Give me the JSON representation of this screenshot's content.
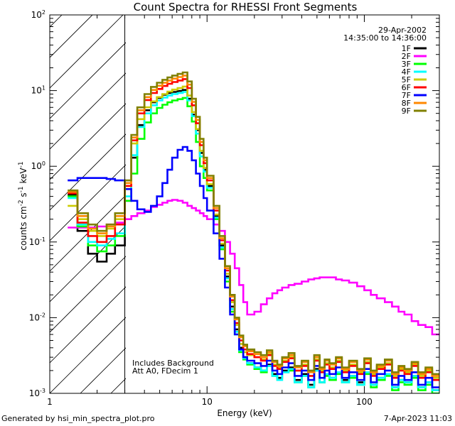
{
  "chart_data": {
    "type": "line",
    "title": "Count Spectra for RHESSI Front Segments",
    "xlabel": "Energy (keV)",
    "ylabel_base": "counts cm",
    "ylabel_exp1": "-2",
    "ylabel_mid": " s",
    "ylabel_exp2": "-1",
    "ylabel_mid2": " keV",
    "ylabel_exp3": "-1",
    "xscale": "log",
    "yscale": "log",
    "xlim": [
      1,
      300
    ],
    "ylim": [
      0.001,
      100
    ],
    "x_ticks": [
      {
        "value": 1,
        "label": "1"
      },
      {
        "value": 10,
        "label": "10"
      },
      {
        "value": 100,
        "label": "100"
      }
    ],
    "y_ticks": [
      {
        "value": 100,
        "base": "10",
        "exp": "2"
      },
      {
        "value": 10,
        "base": "10",
        "exp": "1"
      },
      {
        "value": 1,
        "base": "10",
        "exp": "0"
      },
      {
        "value": 0.1,
        "base": "10",
        "exp": "-1"
      },
      {
        "value": 0.01,
        "base": "10",
        "exp": "-2"
      },
      {
        "value": 0.001,
        "base": "10",
        "exp": "-3"
      }
    ],
    "date": "29-Apr-2002",
    "time_range": "14:35:00 to 14:36:00",
    "annotation_lines": [
      "Includes Background",
      "Att A0, FDecim 1"
    ],
    "hatched_region": [
      1,
      3
    ],
    "energy_bins": [
      1.3,
      1.5,
      1.75,
      2.0,
      2.3,
      2.6,
      3.0,
      3.3,
      3.6,
      4.0,
      4.4,
      4.8,
      5.2,
      5.6,
      6.0,
      6.5,
      7.0,
      7.5,
      8.0,
      8.5,
      9.0,
      9.5,
      10,
      11,
      12,
      13,
      14,
      15,
      16,
      17,
      18,
      20,
      22,
      24,
      26,
      28,
      30,
      33,
      36,
      40,
      44,
      48,
      52,
      56,
      60,
      66,
      72,
      80,
      90,
      100,
      110,
      120,
      135,
      150,
      165,
      180,
      200,
      220,
      245,
      270,
      300
    ],
    "series": [
      {
        "name": "1F",
        "color": "#000000",
        "values": [
          0.42,
          0.14,
          0.07,
          0.055,
          0.07,
          0.09,
          0.35,
          1.3,
          3.5,
          5.5,
          7.0,
          8.0,
          8.8,
          9.3,
          9.6,
          9.9,
          10.2,
          7.8,
          4.8,
          3.0,
          1.5,
          0.9,
          0.55,
          0.22,
          0.09,
          0.035,
          0.014,
          0.007,
          0.004,
          0.003,
          0.0025,
          0.0022,
          0.002,
          0.0024,
          0.0018,
          0.0016,
          0.002,
          0.0022,
          0.0015,
          0.0018,
          0.0013,
          0.0021,
          0.0014,
          0.0018,
          0.0016,
          0.0019,
          0.0015,
          0.0017,
          0.0014,
          0.0019,
          0.0013,
          0.0016,
          0.0018,
          0.0012,
          0.0015,
          0.0014,
          0.0017,
          0.0012,
          0.0014,
          0.0011
        ]
      },
      {
        "name": "2F",
        "color": "#ff00ff",
        "values": [
          0.155,
          0.155,
          0.155,
          0.16,
          0.17,
          0.18,
          0.2,
          0.22,
          0.24,
          0.26,
          0.29,
          0.31,
          0.33,
          0.35,
          0.36,
          0.35,
          0.33,
          0.3,
          0.28,
          0.26,
          0.24,
          0.22,
          0.2,
          0.17,
          0.14,
          0.1,
          0.07,
          0.045,
          0.027,
          0.016,
          0.011,
          0.012,
          0.015,
          0.018,
          0.021,
          0.023,
          0.025,
          0.027,
          0.028,
          0.03,
          0.032,
          0.033,
          0.034,
          0.034,
          0.034,
          0.032,
          0.031,
          0.029,
          0.026,
          0.023,
          0.02,
          0.018,
          0.016,
          0.014,
          0.012,
          0.011,
          0.009,
          0.008,
          0.0075,
          0.006
        ]
      },
      {
        "name": "3F",
        "color": "#00ff00",
        "values": [
          0.4,
          0.16,
          0.09,
          0.075,
          0.09,
          0.12,
          0.35,
          0.8,
          2.3,
          3.8,
          5.0,
          5.9,
          6.5,
          7.0,
          7.4,
          7.7,
          8.0,
          6.2,
          3.9,
          2.1,
          1.0,
          0.7,
          0.48,
          0.2,
          0.08,
          0.03,
          0.012,
          0.006,
          0.0035,
          0.0028,
          0.0024,
          0.0021,
          0.0019,
          0.0023,
          0.0017,
          0.0015,
          0.0019,
          0.002,
          0.0014,
          0.0017,
          0.0012,
          0.002,
          0.0014,
          0.0017,
          0.0015,
          0.0018,
          0.0014,
          0.0016,
          0.0013,
          0.0018,
          0.0012,
          0.0015,
          0.0017,
          0.0011,
          0.0014,
          0.0013,
          0.0016,
          0.0011,
          0.0013,
          0.001
        ]
      },
      {
        "name": "4F",
        "color": "#00ffff",
        "values": [
          0.38,
          0.17,
          0.1,
          0.09,
          0.11,
          0.13,
          0.4,
          1.4,
          3.3,
          5.0,
          6.4,
          7.4,
          8.1,
          8.6,
          9.0,
          9.3,
          9.6,
          7.4,
          4.6,
          2.7,
          1.35,
          0.85,
          0.52,
          0.21,
          0.085,
          0.033,
          0.013,
          0.0065,
          0.0037,
          0.0029,
          0.0025,
          0.0022,
          0.002,
          0.0023,
          0.0017,
          0.0015,
          0.0019,
          0.0021,
          0.0014,
          0.0017,
          0.0012,
          0.002,
          0.0014,
          0.0018,
          0.0016,
          0.0019,
          0.0014,
          0.0017,
          0.0013,
          0.0019,
          0.0013,
          0.0016,
          0.0018,
          0.0012,
          0.0015,
          0.0014,
          0.0017,
          0.0012,
          0.0014,
          0.0011
        ]
      },
      {
        "name": "5F",
        "color": "#cccc00",
        "values": [
          0.3,
          0.2,
          0.14,
          0.12,
          0.15,
          0.2,
          0.55,
          2.0,
          4.2,
          6.0,
          7.2,
          8.2,
          9.0,
          9.7,
          10.3,
          10.8,
          11.3,
          8.6,
          5.2,
          3.1,
          1.6,
          0.95,
          0.58,
          0.23,
          0.095,
          0.038,
          0.016,
          0.008,
          0.0045,
          0.0035,
          0.0032,
          0.003,
          0.0028,
          0.0033,
          0.0024,
          0.0022,
          0.0027,
          0.003,
          0.002,
          0.0024,
          0.0017,
          0.0028,
          0.002,
          0.0025,
          0.0022,
          0.0027,
          0.002,
          0.0024,
          0.0019,
          0.0026,
          0.0018,
          0.0022,
          0.0025,
          0.0017,
          0.0021,
          0.0019,
          0.0024,
          0.0017,
          0.002,
          0.0016
        ]
      },
      {
        "name": "6F",
        "color": "#ff0000",
        "values": [
          0.44,
          0.18,
          0.12,
          0.1,
          0.12,
          0.17,
          0.55,
          2.2,
          5.0,
          7.5,
          9.3,
          10.5,
          11.5,
          12.3,
          13.0,
          13.6,
          14.2,
          10.8,
          6.4,
          3.7,
          1.9,
          1.1,
          0.65,
          0.26,
          0.105,
          0.042,
          0.017,
          0.0085,
          0.005,
          0.0038,
          0.0033,
          0.003,
          0.0027,
          0.0032,
          0.0023,
          0.0021,
          0.0026,
          0.0029,
          0.002,
          0.0023,
          0.0017,
          0.0027,
          0.0019,
          0.0024,
          0.0021,
          0.0026,
          0.0019,
          0.0023,
          0.0018,
          0.0025,
          0.0017,
          0.0021,
          0.0024,
          0.0016,
          0.002,
          0.0018,
          0.0023,
          0.0016,
          0.0019,
          0.0015
        ]
      },
      {
        "name": "7F",
        "color": "#0000ff",
        "values": [
          0.65,
          0.7,
          0.7,
          0.7,
          0.68,
          0.65,
          0.5,
          0.35,
          0.27,
          0.25,
          0.3,
          0.4,
          0.6,
          0.9,
          1.3,
          1.65,
          1.8,
          1.6,
          1.2,
          0.8,
          0.55,
          0.38,
          0.26,
          0.13,
          0.06,
          0.025,
          0.011,
          0.006,
          0.0038,
          0.003,
          0.0027,
          0.0025,
          0.0023,
          0.0027,
          0.002,
          0.0018,
          0.0022,
          0.0025,
          0.0017,
          0.002,
          0.0015,
          0.0023,
          0.0016,
          0.002,
          0.0018,
          0.0022,
          0.0016,
          0.0019,
          0.0015,
          0.0021,
          0.0014,
          0.0018,
          0.002,
          0.0013,
          0.0017,
          0.0015,
          0.0019,
          0.0013,
          0.0016,
          0.0012
        ]
      },
      {
        "name": "8F",
        "color": "#ff8800",
        "values": [
          0.46,
          0.22,
          0.15,
          0.13,
          0.16,
          0.22,
          0.6,
          2.4,
          5.5,
          8.2,
          10.2,
          11.6,
          12.7,
          13.6,
          14.4,
          15.1,
          15.8,
          12.0,
          7.1,
          4.1,
          2.1,
          1.2,
          0.7,
          0.28,
          0.112,
          0.045,
          0.019,
          0.0095,
          0.0055,
          0.0042,
          0.0036,
          0.0033,
          0.003,
          0.0035,
          0.0026,
          0.0023,
          0.0029,
          0.0032,
          0.0022,
          0.0026,
          0.0019,
          0.003,
          0.0021,
          0.0027,
          0.0024,
          0.0029,
          0.0021,
          0.0026,
          0.002,
          0.0028,
          0.0019,
          0.0023,
          0.0027,
          0.0018,
          0.0022,
          0.002,
          0.0025,
          0.0018,
          0.0021,
          0.0017
        ]
      },
      {
        "name": "9F",
        "color": "#808000",
        "values": [
          0.48,
          0.24,
          0.17,
          0.14,
          0.17,
          0.24,
          0.65,
          2.6,
          6.0,
          9.0,
          11.2,
          12.7,
          13.9,
          14.9,
          15.8,
          16.6,
          17.4,
          13.2,
          7.8,
          4.5,
          2.3,
          1.3,
          0.75,
          0.3,
          0.12,
          0.048,
          0.02,
          0.01,
          0.0058,
          0.0044,
          0.0038,
          0.0035,
          0.0032,
          0.0037,
          0.0027,
          0.0024,
          0.003,
          0.0034,
          0.0023,
          0.0027,
          0.002,
          0.0032,
          0.0022,
          0.0028,
          0.0025,
          0.003,
          0.0022,
          0.0027,
          0.0021,
          0.0029,
          0.002,
          0.0024,
          0.0028,
          0.0019,
          0.0023,
          0.0021,
          0.0026,
          0.0019,
          0.0022,
          0.0018
        ]
      }
    ]
  },
  "footer": {
    "left": "Generated by hsi_min_spectra_plot.pro",
    "right": "7-Apr-2023 11:03"
  }
}
